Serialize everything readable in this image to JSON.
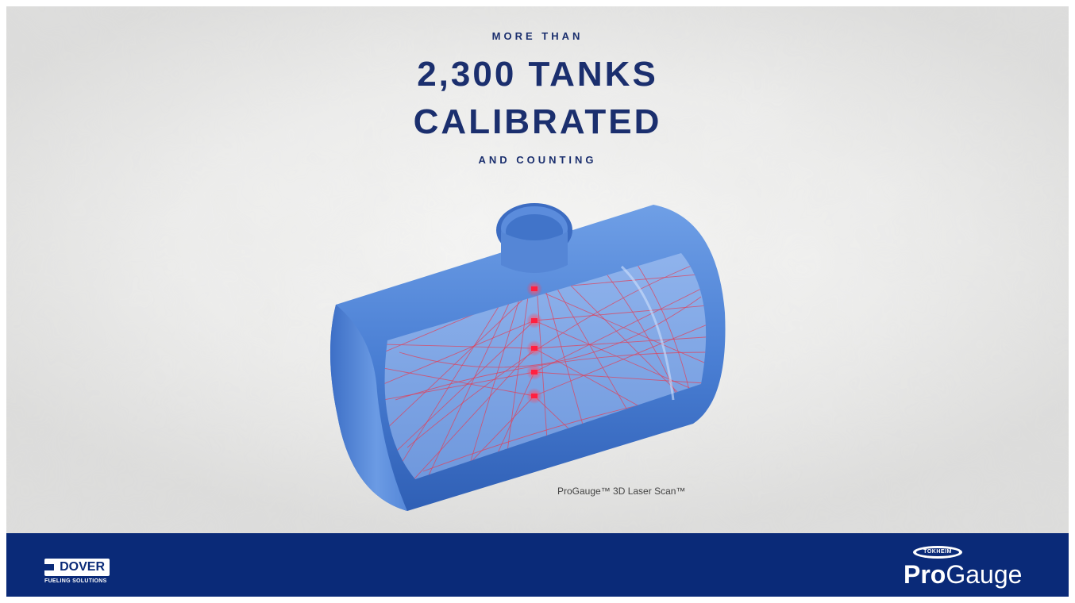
{
  "headline": {
    "kicker_top": "MORE THAN",
    "line1": "2,300 TANKS",
    "line2": "CALIBRATED",
    "kicker_bottom": "AND COUNTING"
  },
  "illustration": {
    "caption": "ProGauge™ 3D Laser Scan™"
  },
  "footer": {
    "dover_logo": {
      "name": "DOVER",
      "tagline": "FUELING SOLUTIONS"
    },
    "brand_logo": {
      "badge": "TOKHEIM",
      "name_bold": "Pro",
      "name_regular": "Gauge"
    }
  },
  "colors": {
    "navy_text": "#1b2f6e",
    "footer_blue": "#0a2a78",
    "tank_blue": "#4a7fd4",
    "laser_red": "#ff3050"
  }
}
